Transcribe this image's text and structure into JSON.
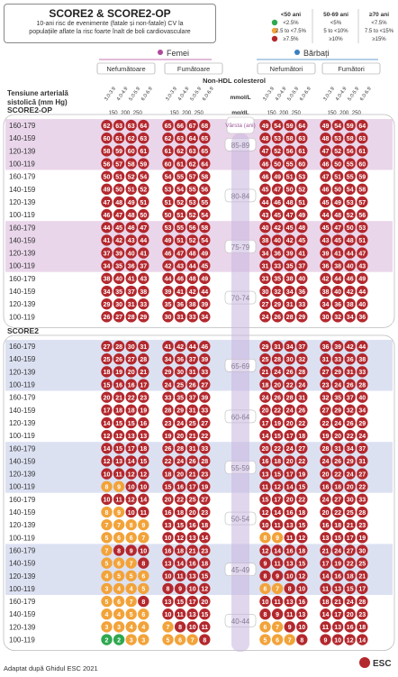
{
  "header": {
    "title": "SCORE2 & SCORE2-OP",
    "subtitle_line1": "10-ani risc de evenimente (fatale și non-fatale) CV la",
    "subtitle_line2": "populațiile aflate la risc foarte înalt de boli cardiovasculare"
  },
  "legend": {
    "age_groups": [
      "<50 ani",
      "50-69 ani",
      "≥70 ani"
    ],
    "rows": [
      {
        "color": "#2fa84f",
        "values": [
          "<2.5%",
          "<5%",
          "<7.5%"
        ]
      },
      {
        "color": "#f2a33a",
        "values": [
          "2.5 to <7.5%",
          "5 to <10%",
          "7.5 to <15%"
        ]
      },
      {
        "color": "#b3282d",
        "values": [
          "≥7.5%",
          "≥10%",
          "≥15%"
        ]
      }
    ]
  },
  "sex_labels": {
    "female": "Femei",
    "male": "Bărbați"
  },
  "smoking_labels": {
    "non_smoker_f": "Nefumătoare",
    "smoker_f": "Fumătoare",
    "non_smoker_m": "Nefumători",
    "smoker_m": "Fumători"
  },
  "axis": {
    "column_header": "Non-HDL colesterol",
    "bp_label_line1": "Tensiune arterială",
    "bp_label_line2": "sistolică (mm Hg)",
    "unit_mmol": "mmol/L",
    "unit_mgdl": "mg/dL",
    "age_label": "Vârsta (ani)"
  },
  "footer": {
    "source": "Adaptat după Ghidul ESC 2021",
    "logo": "ESC"
  },
  "chart_data": {
    "type": "heatmap",
    "title": "SCORE2 & SCORE2-OP",
    "x_mmol": [
      "3.0-3.9",
      "4.0-4.9",
      "5.0-5.9",
      "6.0-6.9"
    ],
    "x_mgdl": [
      "150",
      "200",
      "250"
    ],
    "bp_categories": [
      "160-179",
      "140-159",
      "120-139",
      "100-119"
    ],
    "columns": [
      "Femei - Nefumătoare",
      "Femei - Fumătoare",
      "Bărbați - Nefumători",
      "Bărbați - Fumători"
    ],
    "sections": [
      {
        "name": "SCORE2-OP",
        "age_groups": [
          {
            "age": "85-89",
            "rows": [
              [
                62,
                63,
                63,
                64,
                65,
                66,
                67,
                68,
                49,
                54,
                59,
                64,
                49,
                54,
                59,
                64
              ],
              [
                60,
                61,
                62,
                63,
                62,
                63,
                64,
                65,
                48,
                53,
                58,
                63,
                48,
                53,
                58,
                63
              ],
              [
                58,
                59,
                60,
                61,
                61,
                62,
                63,
                65,
                47,
                52,
                56,
                61,
                47,
                52,
                56,
                61
              ],
              [
                56,
                57,
                58,
                59,
                60,
                61,
                62,
                64,
                46,
                50,
                55,
                60,
                46,
                50,
                55,
                60
              ]
            ]
          },
          {
            "age": "80-84",
            "rows": [
              [
                50,
                51,
                52,
                54,
                54,
                55,
                57,
                58,
                46,
                49,
                51,
                53,
                47,
                51,
                55,
                59
              ],
              [
                49,
                50,
                51,
                52,
                53,
                54,
                55,
                56,
                45,
                47,
                50,
                52,
                46,
                50,
                54,
                58
              ],
              [
                47,
                48,
                49,
                51,
                51,
                52,
                53,
                55,
                44,
                46,
                48,
                51,
                45,
                49,
                53,
                57
              ],
              [
                46,
                47,
                48,
                50,
                50,
                51,
                52,
                54,
                43,
                45,
                47,
                49,
                44,
                48,
                52,
                56
              ]
            ]
          },
          {
            "age": "75-79",
            "rows": [
              [
                44,
                45,
                46,
                47,
                53,
                55,
                56,
                58,
                40,
                42,
                45,
                48,
                45,
                47,
                50,
                53
              ],
              [
                41,
                42,
                43,
                44,
                49,
                51,
                52,
                54,
                38,
                40,
                42,
                45,
                43,
                45,
                48,
                51
              ],
              [
                37,
                39,
                40,
                41,
                46,
                47,
                48,
                49,
                34,
                36,
                39,
                41,
                39,
                41,
                44,
                47
              ],
              [
                34,
                35,
                36,
                37,
                42,
                43,
                44,
                45,
                31,
                33,
                35,
                37,
                36,
                38,
                40,
                43
              ]
            ]
          },
          {
            "age": "70-74",
            "rows": [
              [
                38,
                40,
                41,
                43,
                44,
                46,
                48,
                49,
                33,
                35,
                38,
                40,
                42,
                44,
                46,
                49
              ],
              [
                34,
                35,
                37,
                38,
                39,
                41,
                42,
                44,
                30,
                32,
                34,
                36,
                38,
                40,
                42,
                44
              ],
              [
                29,
                30,
                31,
                33,
                35,
                36,
                38,
                39,
                27,
                29,
                31,
                33,
                34,
                36,
                38,
                40
              ],
              [
                26,
                27,
                28,
                29,
                30,
                31,
                33,
                34,
                24,
                26,
                28,
                29,
                30,
                32,
                34,
                36
              ]
            ]
          }
        ]
      },
      {
        "name": "SCORE2",
        "age_groups": [
          {
            "age": "65-69",
            "rows": [
              [
                27,
                28,
                30,
                31,
                41,
                42,
                44,
                46,
                29,
                31,
                34,
                37,
                36,
                39,
                42,
                44
              ],
              [
                25,
                26,
                27,
                28,
                34,
                36,
                37,
                39,
                25,
                28,
                30,
                32,
                31,
                33,
                36,
                38
              ],
              [
                18,
                19,
                20,
                21,
                29,
                30,
                31,
                33,
                21,
                24,
                26,
                28,
                27,
                29,
                31,
                33
              ],
              [
                15,
                16,
                16,
                17,
                24,
                25,
                26,
                27,
                18,
                20,
                22,
                24,
                23,
                24,
                26,
                28
              ]
            ]
          },
          {
            "age": "60-64",
            "rows": [
              [
                20,
                21,
                22,
                23,
                33,
                35,
                37,
                39,
                24,
                26,
                28,
                31,
                32,
                35,
                37,
                40
              ],
              [
                17,
                18,
                18,
                19,
                28,
                29,
                31,
                33,
                20,
                22,
                24,
                26,
                27,
                29,
                32,
                34
              ],
              [
                14,
                15,
                15,
                16,
                23,
                24,
                25,
                27,
                17,
                19,
                20,
                22,
                22,
                24,
                26,
                29
              ],
              [
                12,
                12,
                13,
                13,
                19,
                20,
                21,
                22,
                14,
                15,
                17,
                18,
                19,
                20,
                22,
                24
              ]
            ]
          },
          {
            "age": "55-59",
            "rows": [
              [
                14,
                15,
                17,
                18,
                26,
                28,
                31,
                33,
                20,
                22,
                24,
                27,
                28,
                31,
                34,
                37
              ],
              [
                12,
                13,
                14,
                15,
                22,
                24,
                26,
                28,
                16,
                18,
                20,
                22,
                24,
                26,
                29,
                31
              ],
              [
                10,
                11,
                12,
                12,
                18,
                20,
                21,
                23,
                13,
                15,
                17,
                19,
                20,
                22,
                24,
                27
              ],
              [
                8,
                9,
                10,
                10,
                15,
                16,
                17,
                19,
                11,
                12,
                14,
                15,
                16,
                18,
                20,
                22
              ]
            ]
          },
          {
            "age": "50-54",
            "rows": [
              [
                10,
                11,
                12,
                14,
                20,
                22,
                25,
                27,
                15,
                17,
                20,
                22,
                24,
                27,
                30,
                33
              ],
              [
                8,
                9,
                10,
                11,
                16,
                18,
                20,
                23,
                12,
                14,
                16,
                18,
                20,
                22,
                25,
                28
              ],
              [
                7,
                7,
                8,
                9,
                13,
                15,
                16,
                18,
                10,
                11,
                13,
                15,
                16,
                18,
                21,
                23
              ],
              [
                5,
                6,
                6,
                7,
                10,
                12,
                13,
                14,
                8,
                9,
                11,
                12,
                13,
                15,
                17,
                19
              ]
            ]
          },
          {
            "age": "45-49",
            "rows": [
              [
                7,
                8,
                9,
                10,
                16,
                18,
                21,
                23,
                12,
                14,
                16,
                18,
                21,
                24,
                27,
                30
              ],
              [
                5,
                6,
                7,
                8,
                13,
                14,
                16,
                18,
                9,
                11,
                13,
                15,
                17,
                19,
                22,
                25
              ],
              [
                4,
                5,
                5,
                6,
                10,
                11,
                13,
                15,
                8,
                9,
                10,
                12,
                14,
                16,
                18,
                21
              ],
              [
                3,
                4,
                4,
                5,
                8,
                9,
                10,
                12,
                6,
                7,
                8,
                10,
                11,
                13,
                15,
                17
              ]
            ]
          },
          {
            "age": "40-44",
            "rows": [
              [
                5,
                6,
                7,
                8,
                13,
                15,
                17,
                20,
                10,
                11,
                13,
                16,
                18,
                21,
                24,
                28
              ],
              [
                4,
                4,
                5,
                6,
                10,
                11,
                13,
                15,
                8,
                9,
                11,
                13,
                14,
                17,
                20,
                23
              ],
              [
                3,
                3,
                4,
                4,
                7,
                8,
                10,
                11,
                6,
                7,
                9,
                10,
                11,
                13,
                16,
                18
              ],
              [
                2,
                2,
                3,
                3,
                5,
                6,
                7,
                8,
                5,
                6,
                7,
                8,
                9,
                10,
                12,
                14
              ]
            ]
          }
        ]
      }
    ]
  }
}
